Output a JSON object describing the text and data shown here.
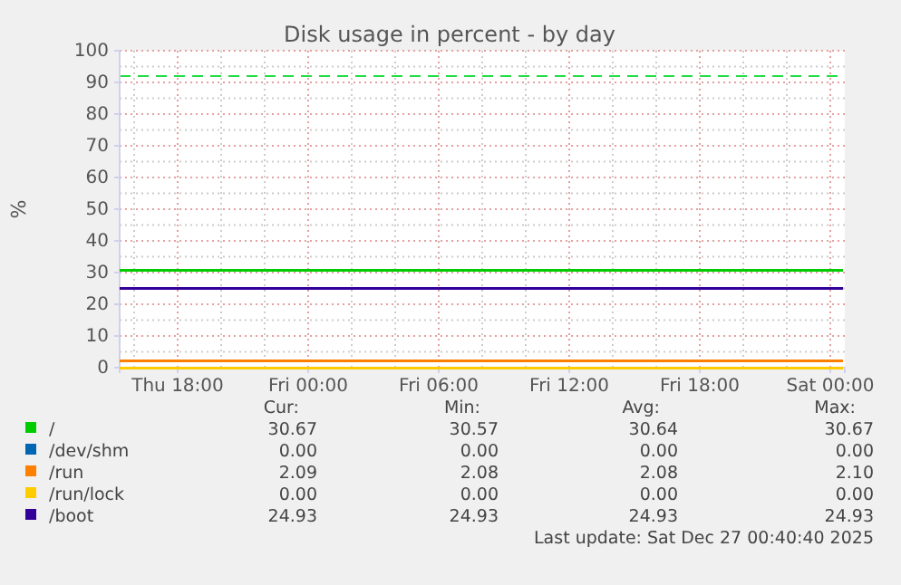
{
  "chart_data": {
    "type": "line",
    "title": "Disk usage in percent - by day",
    "ylabel": "%",
    "xlim": [
      "2025-12-25T15:20",
      "2025-12-27T00:40"
    ],
    "xticks": [
      {
        "value": "2025-12-25T18:00",
        "label": "Thu 18:00"
      },
      {
        "value": "2025-12-26T00:00",
        "label": "Fri 00:00"
      },
      {
        "value": "2025-12-26T06:00",
        "label": "Fri 06:00"
      },
      {
        "value": "2025-12-26T12:00",
        "label": "Fri 12:00"
      },
      {
        "value": "2025-12-26T18:00",
        "label": "Fri 18:00"
      },
      {
        "value": "2025-12-27T00:00",
        "label": "Sat 00:00"
      }
    ],
    "ylim": [
      0,
      100
    ],
    "yticks": [
      0,
      10,
      20,
      30,
      40,
      50,
      60,
      70,
      80,
      90,
      100
    ],
    "grid": true,
    "legend": "bottom",
    "series": [
      {
        "name": "/",
        "color": "#00cc00",
        "x": [
          "2025-12-25T15:20",
          "2025-12-27T00:35"
        ],
        "values": [
          30.6,
          30.6
        ]
      },
      {
        "name": "/dev/shm",
        "color": "#0066b3",
        "values": [
          null
        ]
      },
      {
        "name": "/run",
        "color": "#ff8000",
        "x": [
          "2025-12-25T15:20",
          "2025-12-27T00:35"
        ],
        "values": [
          2.1,
          2.1
        ]
      },
      {
        "name": "/run/lock",
        "color": "#ffcc00",
        "x": [
          "2025-12-25T15:20",
          "2025-12-27T00:35"
        ],
        "values": [
          0,
          0
        ]
      },
      {
        "name": "/boot",
        "color": "#330099",
        "x": [
          "2025-12-25T15:20",
          "2025-12-27T00:35"
        ],
        "values": [
          24.9,
          24.9
        ]
      }
    ],
    "ref_lines": [
      {
        "axis": "y",
        "value": 92,
        "color": "#22dd44",
        "line_style": "dashed"
      }
    ],
    "annotations": [
      "Cur:",
      "Min:",
      "Avg:",
      "Max:",
      "30.67",
      "30.57",
      "30.64",
      "30.67",
      "0.00",
      "0.00",
      "0.00",
      "0.00",
      "2.09",
      "2.08",
      "2.08",
      "2.10",
      "0.00",
      "0.00",
      "0.00",
      "0.00",
      "24.93",
      "24.93",
      "24.93",
      "24.93",
      "Last update: Sat Dec 27 00:40:40 2025"
    ]
  }
}
